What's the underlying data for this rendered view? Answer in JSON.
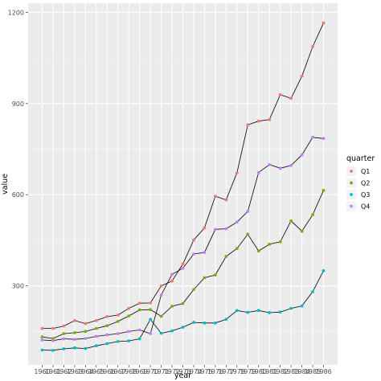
{
  "chart_data": {
    "type": "line",
    "xlabel": "year",
    "ylabel": "value",
    "x": [
      1960,
      1961,
      1962,
      1963,
      1964,
      1965,
      1966,
      1967,
      1968,
      1969,
      1970,
      1971,
      1972,
      1973,
      1974,
      1975,
      1976,
      1977,
      1978,
      1979,
      1980,
      1981,
      1982,
      1983,
      1984,
      1985,
      1986
    ],
    "x_tick_labels": [
      "1960",
      "1961",
      "1962",
      "1963",
      "1964",
      "1965",
      "1966",
      "1967",
      "1968",
      "1969",
      "1970",
      "1971",
      "1972",
      "1973",
      "1974",
      "1975",
      "1976",
      "1977",
      "1978",
      "1979",
      "1980",
      "1981",
      "1982",
      "1983",
      "1984",
      "1985",
      "1986"
    ],
    "y_ticks": [
      300,
      600,
      900,
      1200
    ],
    "y_tick_labels": [
      "300",
      "600",
      "900",
      "1200"
    ],
    "xlim": [
      1958.7,
      1987.3
    ],
    "ylim": [
      40,
      1230
    ],
    "grid": true,
    "line_color": "#000000",
    "panel_color": "#ebebeb",
    "legend": {
      "title": "quarter",
      "position": "right",
      "entries": [
        "Q1",
        "Q2",
        "Q3",
        "Q4"
      ]
    },
    "series": [
      {
        "name": "Q1",
        "color": "#F8766D",
        "values": [
          160,
          160,
          168,
          186,
          176,
          186,
          199,
          204,
          226,
          243,
          244,
          300,
          316,
          372,
          451,
          491,
          595,
          583,
          672,
          830,
          842,
          847,
          929,
          917,
          990,
          1087,
          1165
        ]
      },
      {
        "name": "Q2",
        "color": "#7CAE00",
        "values": [
          132,
          127,
          143,
          146,
          150,
          160,
          169,
          183,
          201,
          221,
          222,
          200,
          233,
          242,
          288,
          327,
          336,
          397,
          423,
          470,
          415,
          437,
          445,
          514,
          480,
          534,
          614
        ]
      },
      {
        "name": "Q3",
        "color": "#00BFC4",
        "values": [
          89,
          88,
          93,
          96,
          94,
          103,
          110,
          117,
          119,
          126,
          190,
          144,
          152,
          164,
          180,
          178,
          178,
          190,
          219,
          213,
          219,
          212,
          214,
          226,
          234,
          281,
          350
        ]
      },
      {
        "name": "Q4",
        "color": "#C77CFF",
        "values": [
          122,
          120,
          126,
          124,
          127,
          134,
          139,
          143,
          150,
          155,
          143,
          270,
          338,
          358,
          405,
          410,
          486,
          488,
          510,
          545,
          673,
          699,
          687,
          696,
          731,
          789,
          785
        ]
      }
    ]
  }
}
